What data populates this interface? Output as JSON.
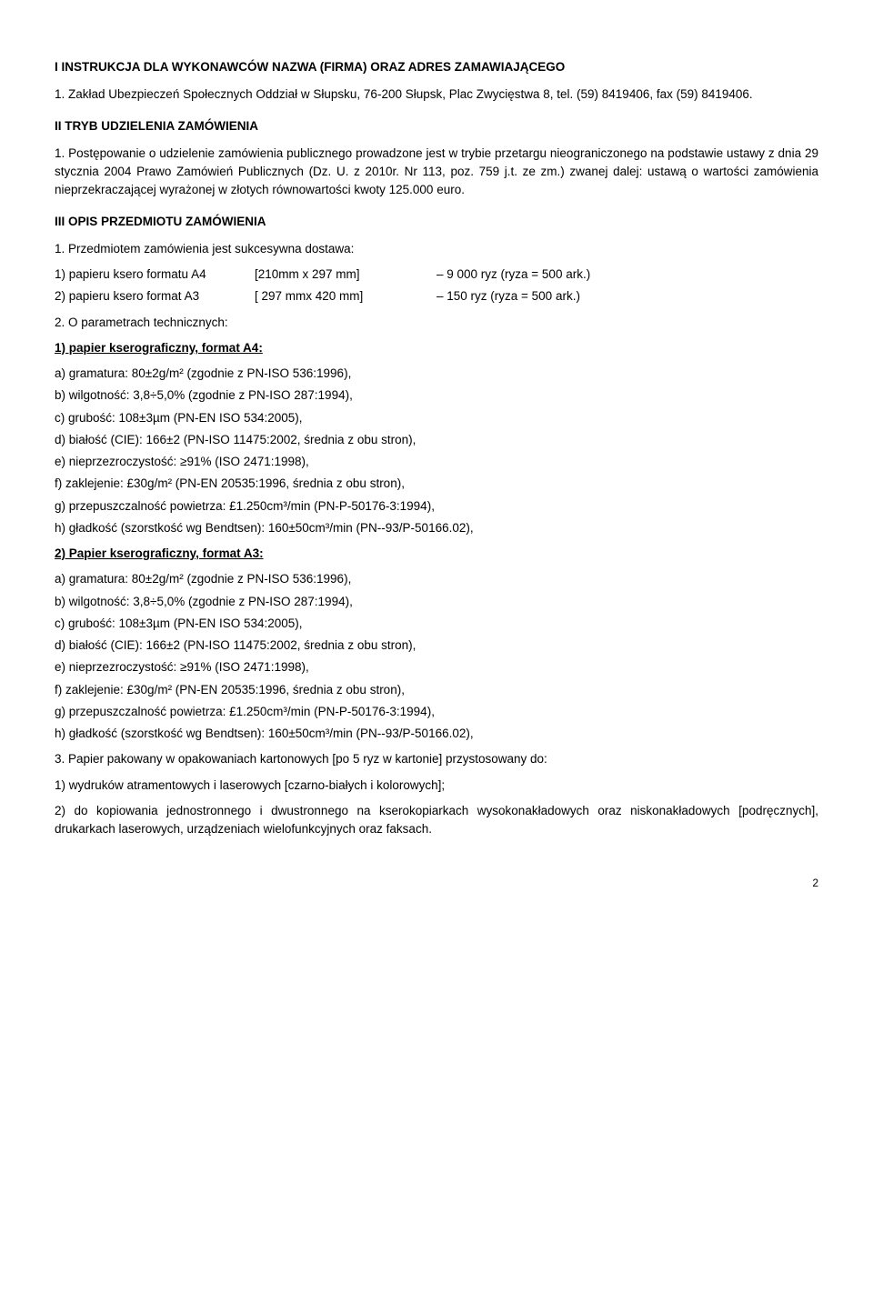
{
  "s1": {
    "heading": "I   INSTRUKCJA DLA WYKONAWCÓW NAZWA (FIRMA) ORAZ ADRES ZAMAWIAJĄCEGO",
    "p1": "1.  Zakład Ubezpieczeń Społecznych Oddział w Słupsku, 76-200 Słupsk, Plac Zwycięstwa 8, tel. (59) 8419406, fax (59) 8419406."
  },
  "s2": {
    "heading": "II   TRYB UDZIELENIA ZAMÓWIENIA",
    "p1": "1. Postępowanie o udzielenie zamówienia publicznego prowadzone jest w trybie przetargu nieograniczonego na podstawie ustawy z dnia 29 stycznia 2004 Prawo Zamówień Publicznych (Dz. U. z 2010r. Nr 113, poz. 759 j.t. ze zm.) zwanej dalej: ustawą o wartości zamówienia nieprzekraczającej wyrażonej w złotych równowartości kwoty 125.000 euro."
  },
  "s3": {
    "heading": "III  OPIS PRZEDMIOTU ZAMÓWIENIA",
    "p1": "1. Przedmiotem zamówienia jest  sukcesywna dostawa:",
    "row1": {
      "c1": "1) papieru ksero formatu A4",
      "c2": "[210mm x 297 mm]",
      "c3": "–   9 000 ryz (ryza = 500 ark.)"
    },
    "row2": {
      "c1": "2) papieru ksero format A3",
      "c2": "[ 297 mmx 420 mm]",
      "c3": "–      150 ryz (ryza = 500 ark.)"
    },
    "p2": "2. O parametrach technicznych:",
    "h_a4": "1) papier kserograficzny, format A4:",
    "a4": {
      "a": "a)  gramatura: 80±2g/m² (zgodnie z PN-ISO 536:1996),",
      "b": "b)  wilgotność: 3,8÷5,0% (zgodnie z PN-ISO 287:1994),",
      "c": "c)  grubość: 108±3µm (PN-EN ISO 534:2005),",
      "d": "d)  białość (CIE): 166±2 (PN-ISO 11475:2002, średnia z obu stron),",
      "e": "e)  nieprzezroczystość: ≥91% (ISO 2471:1998),",
      "f": "f)   zaklejenie: £30g/m² (PN-EN 20535:1996, średnia z obu stron),",
      "g": "g)  przepuszczalność powietrza: £1.250cm³/min (PN-P-50176-3:1994),",
      "h": "h)  gładkość (szorstkość wg Bendtsen): 160±50cm³/min (PN--93/P-50166.02),"
    },
    "h_a3": "2) Papier kserograficzny, format A3:",
    "a3": {
      "a": "a)  gramatura: 80±2g/m² (zgodnie z PN-ISO 536:1996),",
      "b": "b)  wilgotność: 3,8÷5,0% (zgodnie z PN-ISO 287:1994),",
      "c": "c)  grubość: 108±3µm (PN-EN ISO 534:2005),",
      "d": "d)  białość (CIE): 166±2 (PN-ISO 11475:2002, średnia z obu stron),",
      "e": "e)  nieprzezroczystość: ≥91% (ISO 2471:1998),",
      "f": "f)   zaklejenie: £30g/m² (PN-EN 20535:1996, średnia z obu stron),",
      "g": "g)  przepuszczalność powietrza: £1.250cm³/min (PN-P-50176-3:1994),",
      "h": "h)  gładkość (szorstkość wg Bendtsen): 160±50cm³/min (PN--93/P-50166.02),"
    },
    "p3": "3. Papier pakowany w opakowaniach kartonowych [po 5 ryz w kartonie] przystosowany do:",
    "p3a": "1) wydruków atramentowych i laserowych [czarno-białych i kolorowych];",
    "p3b": "2) do kopiowania jednostronnego i dwustronnego na kserokopiarkach wysokonakładowych oraz niskonakładowych [podręcznych], drukarkach laserowych, urządzeniach wielofunkcyjnych oraz faksach."
  },
  "pagenum": "2"
}
